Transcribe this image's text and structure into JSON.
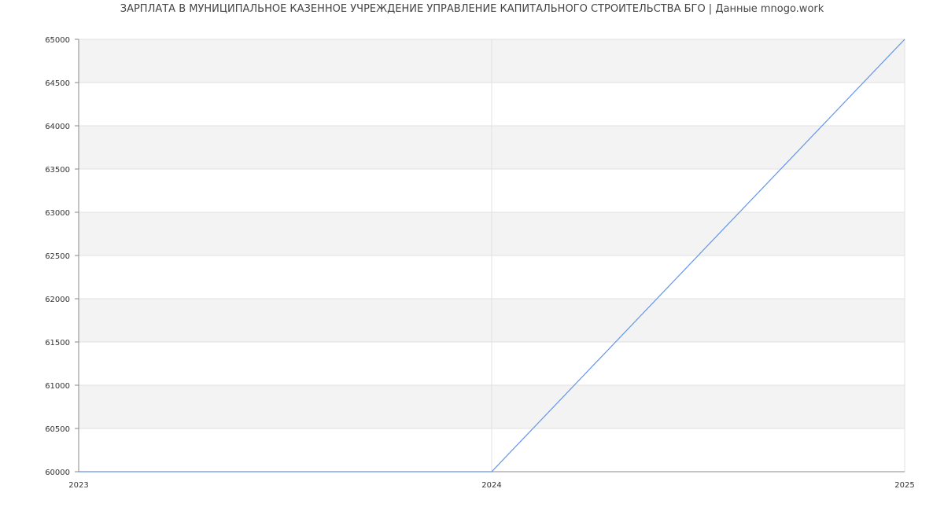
{
  "chart_data": {
    "type": "line",
    "title": "ЗАРПЛАТА В МУНИЦИПАЛЬНОЕ КАЗЕННОЕ УЧРЕЖДЕНИЕ УПРАВЛЕНИЕ КАПИТАЛЬНОГО СТРОИТЕЛЬСТВА  БГО | Данные mnogo.work",
    "xlabel": "",
    "ylabel": "",
    "x": [
      2023,
      2024,
      2025
    ],
    "x_ticks": [
      "2023",
      "2024",
      "2025"
    ],
    "series": [
      {
        "values": [
          60000,
          60000,
          65000
        ],
        "color": "#6495ed"
      }
    ],
    "ylim": [
      60000,
      65000
    ],
    "y_ticks": [
      60000,
      60500,
      61000,
      61500,
      62000,
      62500,
      63000,
      63500,
      64000,
      64500,
      65000
    ],
    "grid": true,
    "band_color": "#f3f3f3",
    "grid_color": "#e0e0e0"
  }
}
